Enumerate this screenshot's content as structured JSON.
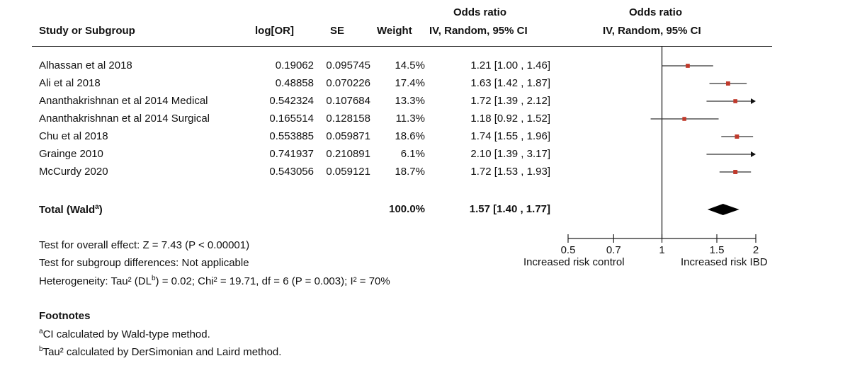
{
  "headers": {
    "study": "Study or Subgroup",
    "logor": "log[OR]",
    "se": "SE",
    "weight": "Weight",
    "or_top": "Odds ratio",
    "or_bottom": "IV, Random, 95% CI",
    "plot_top": "Odds ratio",
    "plot_bottom": "IV, Random, 95% CI"
  },
  "rows": [
    {
      "study": "Alhassan et al 2018",
      "logor": "0.19062",
      "se": "0.095745",
      "weight": "14.5%",
      "ci": "1.21 [1.00 , 1.46]"
    },
    {
      "study": "Ali et al 2018",
      "logor": "0.48858",
      "se": "0.070226",
      "weight": "17.4%",
      "ci": "1.63 [1.42 , 1.87]"
    },
    {
      "study": "Ananthakrishnan et al 2014 Medical",
      "logor": "0.542324",
      "se": "0.107684",
      "weight": "13.3%",
      "ci": "1.72 [1.39 , 2.12]"
    },
    {
      "study": "Ananthakrishnan et al 2014 Surgical",
      "logor": "0.165514",
      "se": "0.128158",
      "weight": "11.3%",
      "ci": "1.18 [0.92 , 1.52]"
    },
    {
      "study": "Chu et al 2018",
      "logor": "0.553885",
      "se": "0.059871",
      "weight": "18.6%",
      "ci": "1.74 [1.55 , 1.96]"
    },
    {
      "study": "Grainge 2010",
      "logor": "0.741937",
      "se": "0.210891",
      "weight": "6.1%",
      "ci": "2.10 [1.39 , 3.17]"
    },
    {
      "study": "McCurdy 2020",
      "logor": "0.543056",
      "se": "0.059121",
      "weight": "18.7%",
      "ci": "1.72 [1.53 , 1.93]"
    }
  ],
  "total": {
    "label": "Total (Wald",
    "label_sup": "a",
    "label_close": ")",
    "weight": "100.0%",
    "ci": "1.57 [1.40 , 1.77]"
  },
  "tests": {
    "overall": "Test for overall effect: Z = 7.43 (P < 0.00001)",
    "subgroup": "Test for subgroup differences: Not applicable",
    "het_pre": "Heterogeneity: Tau² (DL",
    "het_sup": "b",
    "het_post": ") = 0.02; Chi² = 19.71, df = 6 (P = 0.003); I² = 70%"
  },
  "footnotes": {
    "title": "Footnotes",
    "a_sup": "a",
    "a_text": "CI calculated by Wald-type method.",
    "b_sup": "b",
    "b_text": "Tau² calculated by DerSimonian and Laird method."
  },
  "axis": {
    "left_label": "Increased risk control",
    "right_label": "Increased risk IBD"
  },
  "colors": {
    "point": "#c0392b",
    "line": "#333333",
    "diamond": "#000000"
  },
  "chart_data": {
    "type": "forest",
    "x_scale": "log",
    "xlim": [
      0.5,
      2
    ],
    "ticks": [
      0.5,
      0.7,
      1,
      1.5,
      2
    ],
    "tick_labels": [
      "0.5",
      "0.7",
      "1",
      "1.5",
      "2"
    ],
    "null_line": 1,
    "studies": [
      {
        "name": "Alhassan et al 2018",
        "or": 1.21,
        "lo": 1.0,
        "hi": 1.46,
        "weight": 14.5
      },
      {
        "name": "Ali et al 2018",
        "or": 1.63,
        "lo": 1.42,
        "hi": 1.87,
        "weight": 17.4
      },
      {
        "name": "Ananthakrishnan et al 2014 Medical",
        "or": 1.72,
        "lo": 1.39,
        "hi": 2.12,
        "weight": 13.3
      },
      {
        "name": "Ananthakrishnan et al 2014 Surgical",
        "or": 1.18,
        "lo": 0.92,
        "hi": 1.52,
        "weight": 11.3
      },
      {
        "name": "Chu et al 2018",
        "or": 1.74,
        "lo": 1.55,
        "hi": 1.96,
        "weight": 18.6
      },
      {
        "name": "Grainge 2010",
        "or": 2.1,
        "lo": 1.39,
        "hi": 3.17,
        "weight": 6.1
      },
      {
        "name": "McCurdy 2020",
        "or": 1.72,
        "lo": 1.53,
        "hi": 1.93,
        "weight": 18.7
      }
    ],
    "pooled": {
      "or": 1.57,
      "lo": 1.4,
      "hi": 1.77
    }
  }
}
